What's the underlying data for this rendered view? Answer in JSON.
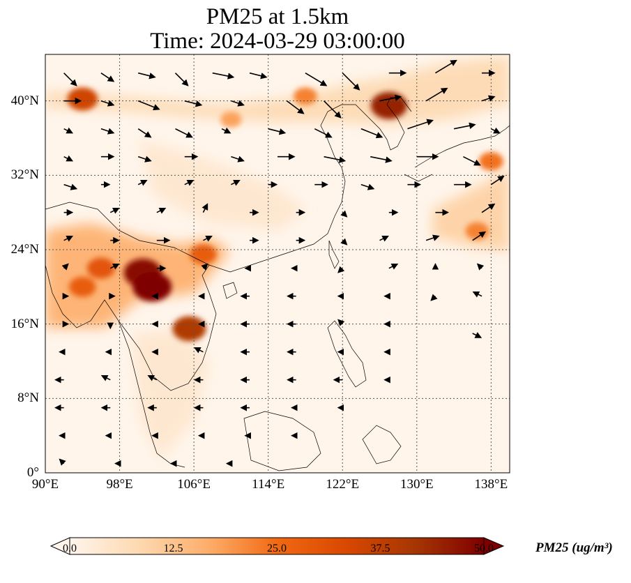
{
  "title": {
    "line1": "PM25 at 1.5km",
    "line2": "Time: 2024-03-29 03:00:00"
  },
  "map": {
    "extent": {
      "lon_min": 90,
      "lon_max": 140,
      "lat_min": 0,
      "lat_max": 45
    },
    "lat_ticks": [
      {
        "value": 0,
        "label": "0°"
      },
      {
        "value": 8,
        "label": "8°N"
      },
      {
        "value": 16,
        "label": "16°N"
      },
      {
        "value": 24,
        "label": "24°N"
      },
      {
        "value": 32,
        "label": "32°N"
      },
      {
        "value": 40,
        "label": "40°N"
      }
    ],
    "lon_ticks": [
      {
        "value": 90,
        "label": "90°E"
      },
      {
        "value": 98,
        "label": "98°E"
      },
      {
        "value": 106,
        "label": "106°E"
      },
      {
        "value": 114,
        "label": "114°E"
      },
      {
        "value": 122,
        "label": "122°E"
      },
      {
        "value": 130,
        "label": "130°E"
      },
      {
        "value": 138,
        "label": "138°E"
      }
    ],
    "gridlines": true
  },
  "colorbar": {
    "label": "PM25 (ug/m³)",
    "ticks": [
      "0.0",
      "12.5",
      "25.0",
      "37.5",
      "50.0"
    ],
    "min": 0,
    "max": 50,
    "colors": [
      "#fff5eb",
      "#fdd9b1",
      "#fdae6b",
      "#f16913",
      "#d94801",
      "#a63603",
      "#7f0000"
    ]
  },
  "pollution_hotspots": [
    {
      "lon": 100.5,
      "lat": 21.5,
      "value": 48
    },
    {
      "lon": 101.5,
      "lat": 20.0,
      "value": 50
    },
    {
      "lon": 96.0,
      "lat": 22.0,
      "value": 30
    },
    {
      "lon": 94.0,
      "lat": 20.0,
      "value": 28
    },
    {
      "lon": 105.5,
      "lat": 15.5,
      "value": 40
    },
    {
      "lon": 107.0,
      "lat": 23.5,
      "value": 28
    },
    {
      "lon": 127.0,
      "lat": 39.5,
      "value": 45
    },
    {
      "lon": 94.0,
      "lat": 40.2,
      "value": 35
    },
    {
      "lon": 118.0,
      "lat": 40.5,
      "value": 22
    },
    {
      "lon": 110.0,
      "lat": 38.0,
      "value": 18
    },
    {
      "lon": 136.5,
      "lat": 26.0,
      "value": 22
    },
    {
      "lon": 138.0,
      "lat": 33.5,
      "value": 24
    }
  ],
  "wind_vectors": [
    {
      "lon": 92,
      "lat": 43,
      "u": 3,
      "v": -3
    },
    {
      "lon": 96,
      "lat": 43,
      "u": 3,
      "v": -2
    },
    {
      "lon": 100,
      "lat": 43,
      "u": 4,
      "v": -1
    },
    {
      "lon": 104,
      "lat": 43,
      "u": 3,
      "v": -3
    },
    {
      "lon": 108,
      "lat": 43,
      "u": 5,
      "v": -1
    },
    {
      "lon": 112,
      "lat": 43,
      "u": 4,
      "v": -1
    },
    {
      "lon": 118,
      "lat": 43,
      "u": 5,
      "v": -3
    },
    {
      "lon": 122,
      "lat": 43,
      "u": 4,
      "v": -4
    },
    {
      "lon": 127,
      "lat": 43,
      "u": 4,
      "v": 0
    },
    {
      "lon": 132,
      "lat": 43,
      "u": 5,
      "v": 3
    },
    {
      "lon": 137,
      "lat": 43,
      "u": 3,
      "v": 0
    },
    {
      "lon": 92,
      "lat": 40,
      "u": 4,
      "v": 0
    },
    {
      "lon": 96,
      "lat": 40,
      "u": 3,
      "v": -1
    },
    {
      "lon": 100,
      "lat": 40,
      "u": 5,
      "v": -2
    },
    {
      "lon": 105,
      "lat": 40,
      "u": 4,
      "v": -1
    },
    {
      "lon": 110,
      "lat": 40,
      "u": 3,
      "v": -1
    },
    {
      "lon": 116,
      "lat": 40,
      "u": 4,
      "v": -3
    },
    {
      "lon": 120,
      "lat": 40,
      "u": 4,
      "v": -4
    },
    {
      "lon": 126,
      "lat": 40,
      "u": 5,
      "v": 1
    },
    {
      "lon": 131,
      "lat": 40,
      "u": 5,
      "v": 3
    },
    {
      "lon": 137,
      "lat": 40,
      "u": 3,
      "v": 1
    },
    {
      "lon": 92,
      "lat": 37,
      "u": 2,
      "v": -1
    },
    {
      "lon": 96,
      "lat": 37,
      "u": 3,
      "v": -1
    },
    {
      "lon": 100,
      "lat": 37,
      "u": 3,
      "v": -2
    },
    {
      "lon": 104,
      "lat": 37,
      "u": 4,
      "v": -2
    },
    {
      "lon": 109,
      "lat": 37,
      "u": 2,
      "v": -1
    },
    {
      "lon": 114,
      "lat": 37,
      "u": 4,
      "v": -1
    },
    {
      "lon": 119,
      "lat": 37,
      "u": 4,
      "v": -2
    },
    {
      "lon": 124,
      "lat": 37,
      "u": 5,
      "v": -2
    },
    {
      "lon": 129,
      "lat": 37,
      "u": 6,
      "v": 2
    },
    {
      "lon": 134,
      "lat": 37,
      "u": 5,
      "v": 1
    },
    {
      "lon": 138,
      "lat": 37,
      "u": 2,
      "v": -1
    },
    {
      "lon": 92,
      "lat": 34,
      "u": 2,
      "v": -1
    },
    {
      "lon": 96,
      "lat": 34,
      "u": 3,
      "v": 0
    },
    {
      "lon": 100,
      "lat": 34,
      "u": 3,
      "v": -1
    },
    {
      "lon": 105,
      "lat": 34,
      "u": 3,
      "v": 0
    },
    {
      "lon": 110,
      "lat": 34,
      "u": 3,
      "v": -1
    },
    {
      "lon": 115,
      "lat": 34,
      "u": 4,
      "v": 0
    },
    {
      "lon": 120,
      "lat": 34,
      "u": 5,
      "v": -1
    },
    {
      "lon": 125,
      "lat": 34,
      "u": 5,
      "v": -1
    },
    {
      "lon": 130,
      "lat": 34,
      "u": 5,
      "v": 0
    },
    {
      "lon": 135,
      "lat": 34,
      "u": 4,
      "v": -2
    },
    {
      "lon": 92,
      "lat": 31,
      "u": 3,
      "v": -1
    },
    {
      "lon": 96,
      "lat": 31,
      "u": 2,
      "v": 0
    },
    {
      "lon": 100,
      "lat": 31,
      "u": 2,
      "v": 1
    },
    {
      "lon": 105,
      "lat": 31,
      "u": 2,
      "v": 1
    },
    {
      "lon": 110,
      "lat": 31,
      "u": 2,
      "v": 1
    },
    {
      "lon": 114,
      "lat": 31,
      "u": 2,
      "v": 0
    },
    {
      "lon": 119,
      "lat": 31,
      "u": 3,
      "v": 0
    },
    {
      "lon": 124,
      "lat": 31,
      "u": 3,
      "v": -1
    },
    {
      "lon": 129,
      "lat": 31,
      "u": 3,
      "v": 0
    },
    {
      "lon": 134,
      "lat": 31,
      "u": 4,
      "v": 0
    },
    {
      "lon": 138,
      "lat": 31,
      "u": 3,
      "v": 2
    },
    {
      "lon": 92,
      "lat": 28,
      "u": 2,
      "v": 0
    },
    {
      "lon": 97,
      "lat": 28,
      "u": 2,
      "v": 1
    },
    {
      "lon": 102,
      "lat": 28,
      "u": 2,
      "v": 1
    },
    {
      "lon": 107,
      "lat": 28,
      "u": 1,
      "v": 2
    },
    {
      "lon": 112,
      "lat": 28,
      "u": 2,
      "v": 0
    },
    {
      "lon": 117,
      "lat": 28,
      "u": 2,
      "v": 0
    },
    {
      "lon": 122,
      "lat": 28,
      "u": 1,
      "v": -1
    },
    {
      "lon": 127,
      "lat": 28,
      "u": 2,
      "v": 0
    },
    {
      "lon": 132,
      "lat": 28,
      "u": 3,
      "v": 0
    },
    {
      "lon": 137,
      "lat": 28,
      "u": 3,
      "v": 2
    },
    {
      "lon": 92,
      "lat": 25,
      "u": 2,
      "v": 1
    },
    {
      "lon": 97,
      "lat": 25,
      "u": 2,
      "v": 0
    },
    {
      "lon": 102,
      "lat": 25,
      "u": 3,
      "v": 0
    },
    {
      "lon": 107,
      "lat": 25,
      "u": 2,
      "v": 1
    },
    {
      "lon": 112,
      "lat": 25,
      "u": 2,
      "v": 0
    },
    {
      "lon": 117,
      "lat": 25,
      "u": 2,
      "v": 0
    },
    {
      "lon": 122,
      "lat": 25,
      "u": 1,
      "v": -1
    },
    {
      "lon": 126,
      "lat": 25,
      "u": 2,
      "v": 1
    },
    {
      "lon": 131,
      "lat": 25,
      "u": 3,
      "v": 1
    },
    {
      "lon": 136,
      "lat": 25,
      "u": 3,
      "v": 2
    },
    {
      "lon": 92,
      "lat": 22,
      "u": 1,
      "v": 1
    },
    {
      "lon": 97,
      "lat": 22,
      "u": 2,
      "v": 1
    },
    {
      "lon": 102,
      "lat": 22,
      "u": 2,
      "v": 0
    },
    {
      "lon": 107,
      "lat": 22,
      "u": 1,
      "v": 1
    },
    {
      "lon": 112,
      "lat": 22,
      "u": -1,
      "v": 0
    },
    {
      "lon": 117,
      "lat": 22,
      "u": -1,
      "v": 0
    },
    {
      "lon": 122,
      "lat": 22,
      "u": -1,
      "v": -1
    },
    {
      "lon": 127,
      "lat": 22,
      "u": 2,
      "v": 1
    },
    {
      "lon": 132,
      "lat": 22,
      "u": 0,
      "v": 1
    },
    {
      "lon": 137,
      "lat": 22,
      "u": -1,
      "v": 1
    },
    {
      "lon": 92,
      "lat": 19,
      "u": 1,
      "v": 0
    },
    {
      "lon": 97,
      "lat": 19,
      "u": 1,
      "v": 0
    },
    {
      "lon": 102,
      "lat": 19,
      "u": -1,
      "v": 0
    },
    {
      "lon": 107,
      "lat": 19,
      "u": -1,
      "v": 0
    },
    {
      "lon": 112,
      "lat": 19,
      "u": -2,
      "v": 0
    },
    {
      "lon": 117,
      "lat": 19,
      "u": -2,
      "v": 0
    },
    {
      "lon": 122,
      "lat": 19,
      "u": -1,
      "v": 0
    },
    {
      "lon": 127,
      "lat": 19,
      "u": -1,
      "v": 0
    },
    {
      "lon": 132,
      "lat": 19,
      "u": -1,
      "v": -1
    },
    {
      "lon": 137,
      "lat": 19,
      "u": -2,
      "v": 1
    },
    {
      "lon": 92,
      "lat": 16,
      "u": 1,
      "v": 0
    },
    {
      "lon": 97,
      "lat": 16,
      "u": 0,
      "v": -1
    },
    {
      "lon": 102,
      "lat": 16,
      "u": -1,
      "v": 0
    },
    {
      "lon": 107,
      "lat": 16,
      "u": -1,
      "v": 0
    },
    {
      "lon": 112,
      "lat": 16,
      "u": -2,
      "v": 0
    },
    {
      "lon": 117,
      "lat": 16,
      "u": -2,
      "v": 0
    },
    {
      "lon": 122,
      "lat": 16,
      "u": -1,
      "v": 1
    },
    {
      "lon": 127,
      "lat": 16,
      "u": -1,
      "v": 0
    },
    {
      "lon": 136,
      "lat": 15,
      "u": 2,
      "v": -1
    },
    {
      "lon": 92,
      "lat": 13,
      "u": -1,
      "v": 0
    },
    {
      "lon": 97,
      "lat": 13,
      "u": -1,
      "v": 0
    },
    {
      "lon": 102,
      "lat": 13,
      "u": -1,
      "v": 0
    },
    {
      "lon": 107,
      "lat": 13,
      "u": -2,
      "v": 1
    },
    {
      "lon": 112,
      "lat": 13,
      "u": -2,
      "v": 0
    },
    {
      "lon": 117,
      "lat": 13,
      "u": -2,
      "v": 0
    },
    {
      "lon": 122,
      "lat": 13,
      "u": -1,
      "v": 0
    },
    {
      "lon": 127,
      "lat": 13,
      "u": -1,
      "v": 0
    },
    {
      "lon": 92,
      "lat": 10,
      "u": -2,
      "v": 0
    },
    {
      "lon": 97,
      "lat": 10,
      "u": -2,
      "v": 1
    },
    {
      "lon": 102,
      "lat": 10,
      "u": -2,
      "v": 1
    },
    {
      "lon": 107,
      "lat": 10,
      "u": -2,
      "v": 0
    },
    {
      "lon": 112,
      "lat": 10,
      "u": -2,
      "v": 0
    },
    {
      "lon": 117,
      "lat": 10,
      "u": -2,
      "v": 0
    },
    {
      "lon": 122,
      "lat": 10,
      "u": -2,
      "v": 0
    },
    {
      "lon": 127,
      "lat": 10,
      "u": -1,
      "v": 0
    },
    {
      "lon": 92,
      "lat": 7,
      "u": -2,
      "v": 0
    },
    {
      "lon": 97,
      "lat": 7,
      "u": -2,
      "v": 0
    },
    {
      "lon": 102,
      "lat": 7,
      "u": -2,
      "v": 0
    },
    {
      "lon": 107,
      "lat": 7,
      "u": -2,
      "v": 0
    },
    {
      "lon": 112,
      "lat": 7,
      "u": -2,
      "v": 0
    },
    {
      "lon": 117,
      "lat": 7,
      "u": -1,
      "v": 0
    },
    {
      "lon": 122,
      "lat": 7,
      "u": -1,
      "v": 0
    },
    {
      "lon": 92,
      "lat": 4,
      "u": -1,
      "v": 0
    },
    {
      "lon": 97,
      "lat": 4,
      "u": -1,
      "v": 0
    },
    {
      "lon": 102,
      "lat": 4,
      "u": -1,
      "v": 0
    },
    {
      "lon": 107,
      "lat": 4,
      "u": -1,
      "v": 0
    },
    {
      "lon": 112,
      "lat": 4,
      "u": -1,
      "v": 0
    },
    {
      "lon": 117,
      "lat": 4,
      "u": -1,
      "v": 0
    },
    {
      "lon": 92,
      "lat": 1,
      "u": -1,
      "v": 1
    },
    {
      "lon": 98,
      "lat": 1,
      "u": -1,
      "v": 0
    },
    {
      "lon": 104,
      "lat": 1,
      "u": -1,
      "v": 0
    },
    {
      "lon": 110,
      "lat": 1,
      "u": -1,
      "v": 0
    }
  ]
}
